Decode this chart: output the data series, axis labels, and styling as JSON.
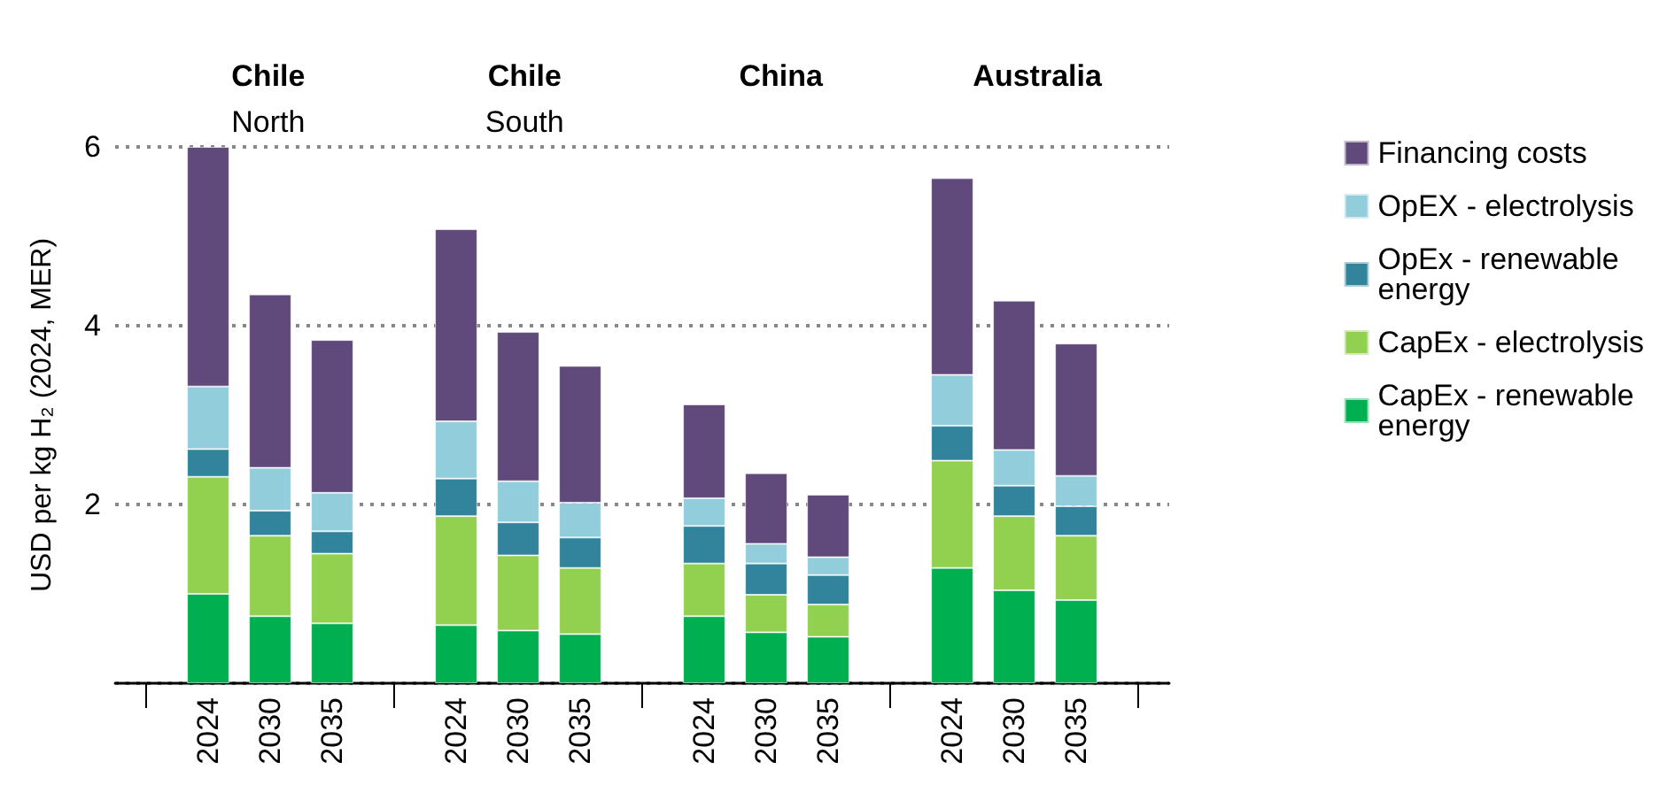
{
  "chart_data": {
    "type": "bar",
    "stacked": true,
    "ylabel": "USD per kg H₂ (2024, MER)",
    "categories": [
      null,
      "2024",
      "2030",
      "2035",
      null,
      "2024",
      "2030",
      "2035",
      null,
      "2024",
      "2030",
      "2035",
      null,
      "2024",
      "2030",
      "2035",
      null
    ],
    "series": [
      {
        "name": "CapEx - renewable energy",
        "color": "#00b050",
        "values": [
          null,
          1.0,
          0.75,
          0.67,
          null,
          0.65,
          0.59,
          0.55,
          null,
          0.75,
          0.57,
          0.52,
          null,
          1.29,
          1.04,
          0.93,
          null
        ]
      },
      {
        "name": "CapEx - electrolysis",
        "color": "#92d050",
        "values": [
          null,
          1.31,
          0.9,
          0.78,
          null,
          1.22,
          0.84,
          0.74,
          null,
          0.59,
          0.42,
          0.36,
          null,
          1.2,
          0.83,
          0.72,
          null
        ]
      },
      {
        "name": "OpEx - renewable energy",
        "color": "#31849b",
        "values": [
          null,
          0.31,
          0.28,
          0.25,
          null,
          0.42,
          0.37,
          0.34,
          null,
          0.42,
          0.35,
          0.33,
          null,
          0.39,
          0.34,
          0.33,
          null
        ]
      },
      {
        "name": "OpEX - electrolysis",
        "color": "#92cddc",
        "values": [
          null,
          0.7,
          0.48,
          0.43,
          null,
          0.64,
          0.46,
          0.39,
          null,
          0.31,
          0.22,
          0.2,
          null,
          0.57,
          0.4,
          0.34,
          null
        ]
      },
      {
        "name": "Financing costs",
        "color": "#604a7b",
        "values": [
          null,
          2.68,
          1.94,
          1.71,
          null,
          2.15,
          1.67,
          1.53,
          null,
          1.05,
          0.79,
          0.7,
          null,
          2.2,
          1.67,
          1.48,
          null
        ]
      }
    ],
    "annotations": [
      "Chile North",
      "Chile South",
      "China",
      "Australia"
    ],
    "ylim": [
      0,
      6
    ],
    "yticks": [
      {
        "value": 0,
        "label": null
      },
      2,
      4,
      6
    ],
    "grid": "y",
    "legend": "right"
  }
}
